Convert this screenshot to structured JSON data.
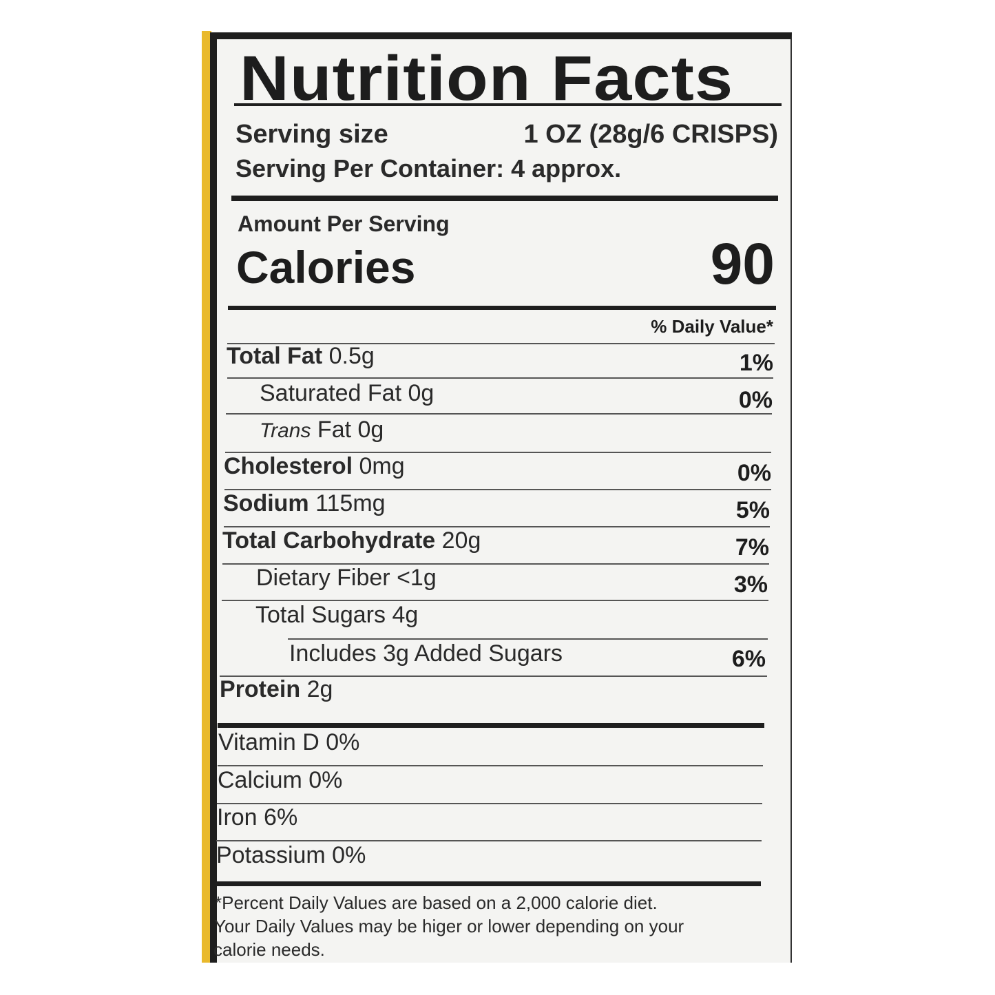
{
  "label": {
    "title": "Nutrition Facts",
    "serving_size_label": "Serving size",
    "serving_size_value": "1 OZ (28g/6 CRISPS)",
    "servings_per_container": "Serving Per Container:  4 approx.",
    "amount_per_serving": "Amount Per Serving",
    "calories_label": "Calories",
    "calories_value": "90",
    "daily_value_header": "% Daily Value*",
    "nutrients": [
      {
        "name": "Total Fat",
        "amount": "0.5g",
        "dv": "1%"
      },
      {
        "name": "Saturated Fat",
        "amount": "0g",
        "dv": "0%"
      },
      {
        "name": "Trans",
        "amount": "Fat 0g",
        "dv": ""
      },
      {
        "name": "Cholesterol",
        "amount": "0mg",
        "dv": "0%"
      },
      {
        "name": "Sodium",
        "amount": "115mg",
        "dv": "5%"
      },
      {
        "name": "Total Carbohydrate",
        "amount": "20g",
        "dv": "7%"
      },
      {
        "name": "Dietary Fiber",
        "amount": "<1g",
        "dv": "3%"
      },
      {
        "name": "Total Sugars",
        "amount": "4g",
        "dv": ""
      },
      {
        "name": "Includes 3g Added Sugars",
        "amount": "",
        "dv": "6%"
      },
      {
        "name": "Protein",
        "amount": "2g",
        "dv": ""
      }
    ],
    "vitamins": [
      "Vitamin D 0%",
      "Calcium 0%",
      "Iron 6%",
      "Potassium 0%"
    ],
    "footnote": [
      "*Percent Daily Values are based on a 2,000 calorie diet.",
      "Your Daily Values may be higer or lower depending on your",
      "calorie needs."
    ]
  },
  "colors": {
    "package_yellow": "#e9b92c",
    "ink": "#1e1e1e"
  }
}
